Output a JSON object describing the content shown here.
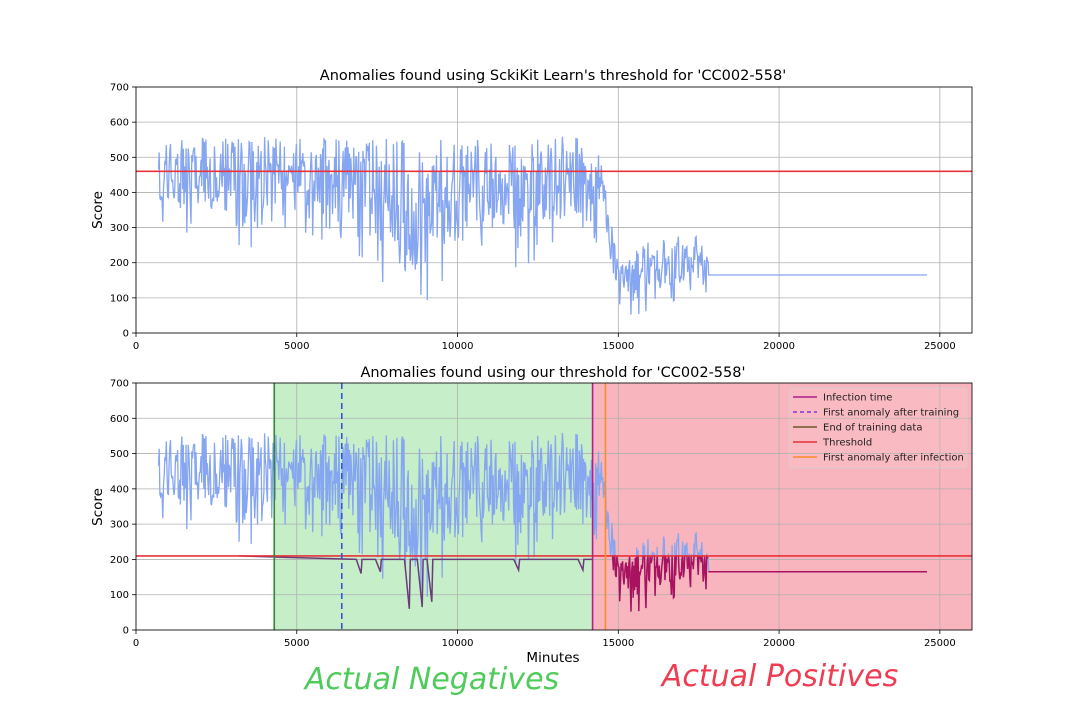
{
  "chart_data": [
    {
      "type": "line",
      "title": "Anomalies found using SckiKit Learn's threshold for 'CC002-558'",
      "xlabel": "",
      "ylabel": "Score",
      "xlim": [
        0,
        26000
      ],
      "ylim": [
        0,
        700
      ],
      "xticks": [
        0,
        5000,
        10000,
        15000,
        20000,
        25000
      ],
      "yticks": [
        0,
        100,
        200,
        300,
        400,
        500,
        600,
        700
      ],
      "grid": true,
      "threshold": 460,
      "series": [
        {
          "name": "",
          "color": "#86a6f2",
          "x": [
            700,
            1500,
            2500,
            3300,
            4500,
            5500,
            6500,
            7500,
            8300,
            9100,
            10000,
            11000,
            12000,
            13000,
            14000,
            14500,
            14800,
            15000,
            15500,
            16000,
            16500,
            17000,
            17500,
            17800,
            24600
          ],
          "y_high": [
            540,
            560,
            555,
            555,
            560,
            555,
            560,
            555,
            555,
            560,
            555,
            560,
            555,
            560,
            555,
            530,
            320,
            200,
            250,
            270,
            270,
            285,
            275,
            210,
            165
          ],
          "y_low": [
            310,
            280,
            300,
            210,
            290,
            260,
            250,
            160,
            60,
            80,
            200,
            250,
            170,
            250,
            240,
            220,
            150,
            70,
            35,
            70,
            80,
            100,
            110,
            90,
            165
          ]
        }
      ],
      "annotations": [
        {
          "name": "Threshold",
          "color": "#e8333a",
          "y": 460
        }
      ]
    },
    {
      "type": "line",
      "title": "Anomalies found using our threshold for 'CC002-558'",
      "xlabel": "Minutes",
      "ylabel": "Score",
      "xlim": [
        0,
        26000
      ],
      "ylim": [
        0,
        700
      ],
      "xticks": [
        0,
        5000,
        10000,
        15000,
        20000,
        25000
      ],
      "yticks": [
        0,
        100,
        200,
        300,
        400,
        500,
        600,
        700
      ],
      "grid": true,
      "legend_position": "top-right",
      "vertical_lines": {
        "end_of_training_data": 4300,
        "first_anomaly_after_training": 6400,
        "infection_time": 14200,
        "first_anomaly_after_infection": 14600
      },
      "threshold": 210,
      "legend": [
        {
          "label": "Infection time",
          "color": "#b0208a",
          "style": "solid"
        },
        {
          "label": "First anomaly after training",
          "color": "#7a3be0",
          "style": "dashed"
        },
        {
          "label": "End of training data",
          "color": "#6b5a2a",
          "style": "solid"
        },
        {
          "label": "Threshold",
          "color": "#e8333a",
          "style": "solid"
        },
        {
          "label": "First anomaly after infection",
          "color": "#ff8a2a",
          "style": "solid"
        }
      ],
      "below_threshold_dips": [
        {
          "x": 7000,
          "y": 160
        },
        {
          "x": 7600,
          "y": 165
        },
        {
          "x": 8500,
          "y": 60
        },
        {
          "x": 8900,
          "y": 65
        },
        {
          "x": 9200,
          "y": 80
        },
        {
          "x": 11900,
          "y": 170
        },
        {
          "x": 13900,
          "y": 170
        }
      ]
    }
  ],
  "regions": [
    {
      "label": "Actual Negatives",
      "color": "#4ecb5a",
      "x_start": 4300,
      "x_end": 14200
    },
    {
      "label": "Actual Positives",
      "color": "#ee3c52",
      "x_start": 14200,
      "x_end": 26000
    }
  ]
}
